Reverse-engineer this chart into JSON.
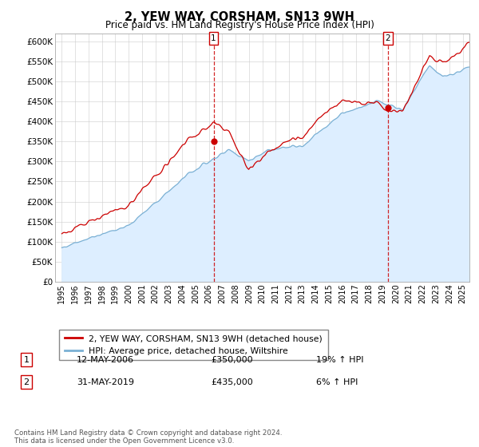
{
  "title": "2, YEW WAY, CORSHAM, SN13 9WH",
  "subtitle": "Price paid vs. HM Land Registry's House Price Index (HPI)",
  "ylabel_ticks": [
    "£0",
    "£50K",
    "£100K",
    "£150K",
    "£200K",
    "£250K",
    "£300K",
    "£350K",
    "£400K",
    "£450K",
    "£500K",
    "£550K",
    "£600K"
  ],
  "ytick_vals": [
    0,
    50000,
    100000,
    150000,
    200000,
    250000,
    300000,
    350000,
    400000,
    450000,
    500000,
    550000,
    600000
  ],
  "ylim": [
    0,
    620000
  ],
  "sale1_date": "12-MAY-2006",
  "sale1_price": 350000,
  "sale1_hpi": "19% ↑ HPI",
  "sale1_x": 2006.36,
  "sale2_date": "31-MAY-2019",
  "sale2_price": 435000,
  "sale2_hpi": "6% ↑ HPI",
  "sale2_x": 2019.41,
  "legend_property": "2, YEW WAY, CORSHAM, SN13 9WH (detached house)",
  "legend_hpi": "HPI: Average price, detached house, Wiltshire",
  "property_color": "#cc0000",
  "hpi_color": "#7ab0d4",
  "hpi_fill_color": "#ddeeff",
  "footnote": "Contains HM Land Registry data © Crown copyright and database right 2024.\nThis data is licensed under the Open Government Licence v3.0.",
  "xlim_start": 1994.5,
  "xlim_end": 2025.5,
  "xtick_years": [
    1995,
    1996,
    1997,
    1998,
    1999,
    2000,
    2001,
    2002,
    2003,
    2004,
    2005,
    2006,
    2007,
    2008,
    2009,
    2010,
    2011,
    2012,
    2013,
    2014,
    2015,
    2016,
    2017,
    2018,
    2019,
    2020,
    2021,
    2022,
    2023,
    2024,
    2025
  ]
}
